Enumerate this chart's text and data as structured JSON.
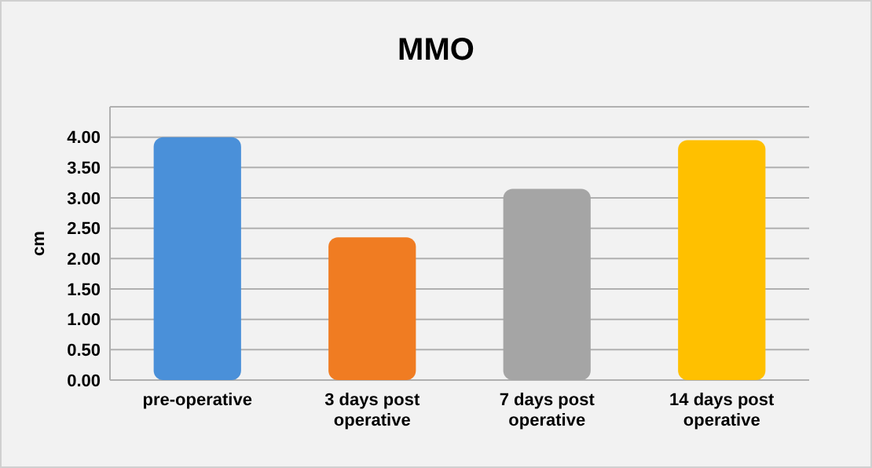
{
  "chart_data": {
    "type": "bar",
    "title": "MMO",
    "ylabel": "cm",
    "categories": [
      "pre-operative",
      "3 days post operative",
      "7 days post operative",
      "14 days post operative"
    ],
    "values": [
      4.0,
      2.35,
      3.15,
      3.95
    ],
    "colors": [
      "#4a90d9",
      "#f07c22",
      "#a5a5a5",
      "#ffc000"
    ],
    "ylim": [
      0,
      4.5
    ],
    "yticks": [
      {
        "value": 0,
        "label": "0.00"
      },
      {
        "value": 0.5,
        "label": "0.50"
      },
      {
        "value": 1,
        "label": "1.00"
      },
      {
        "value": 1.5,
        "label": "1.50"
      },
      {
        "value": 2,
        "label": "2.00"
      },
      {
        "value": 2.5,
        "label": "2.50"
      },
      {
        "value": 3,
        "label": "3.00"
      },
      {
        "value": 3.5,
        "label": "3.50"
      },
      {
        "value": 4,
        "label": "4.00"
      }
    ],
    "grid": true
  }
}
